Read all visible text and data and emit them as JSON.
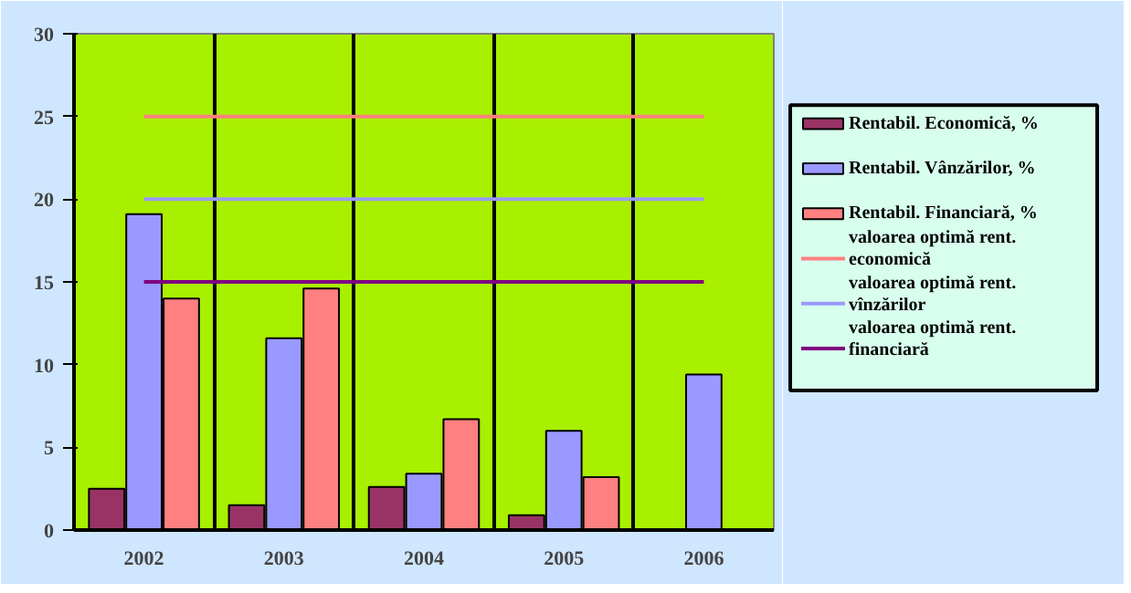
{
  "chart_data": {
    "type": "bar",
    "categories": [
      "2002",
      "2003",
      "2004",
      "2005",
      "2006"
    ],
    "series": [
      {
        "name": "Rentabil. Economică, %",
        "color": "#993366",
        "values": [
          2.5,
          1.5,
          2.6,
          0.9,
          null
        ]
      },
      {
        "name": "Rentabil. Vânzărilor, %",
        "color": "#9999ff",
        "values": [
          19.1,
          11.6,
          3.4,
          6.0,
          9.4
        ]
      },
      {
        "name": "Rentabil. Financiară, %",
        "color": "#ff8080",
        "values": [
          14.0,
          14.6,
          6.7,
          3.2,
          null
        ]
      },
      {
        "name": "valoarea optimă rent. economică",
        "type": "line",
        "color": "#ff8080",
        "values": [
          25,
          25,
          25,
          25,
          25
        ]
      },
      {
        "name": "valoarea optimă rent. vînzărilor",
        "type": "line",
        "color": "#9999ff",
        "values": [
          20,
          20,
          20,
          20,
          20
        ]
      },
      {
        "name": "valoarea optimă rent. financiară",
        "type": "line",
        "color": "#800080",
        "values": [
          15,
          15,
          15,
          15,
          15
        ]
      }
    ],
    "ylim": [
      0,
      30
    ],
    "yticks": [
      0,
      5,
      10,
      15,
      20,
      25,
      30
    ],
    "grid": "x",
    "legend": "right"
  }
}
